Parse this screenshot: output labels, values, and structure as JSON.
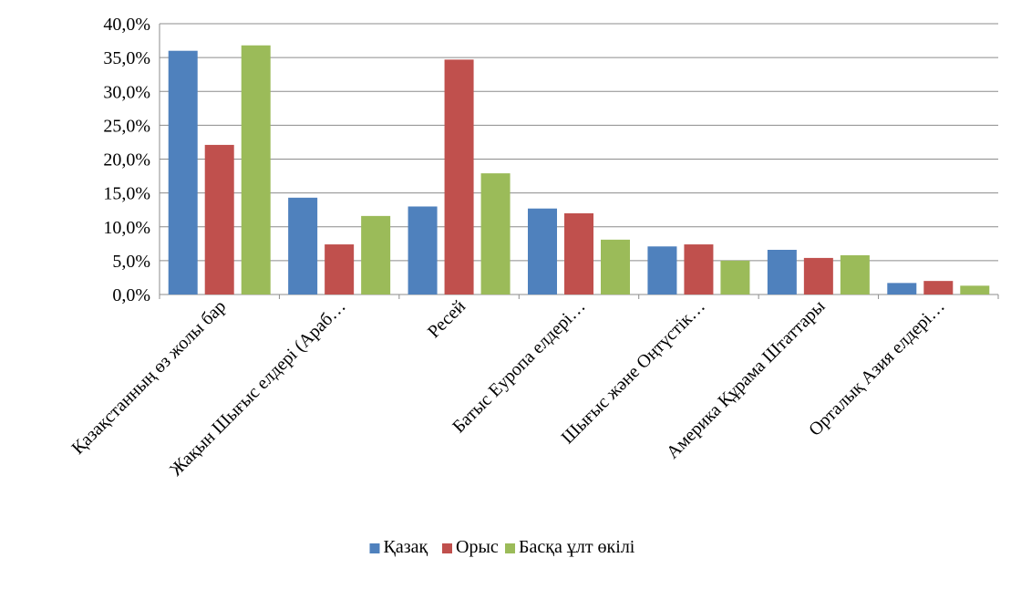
{
  "chart_data": {
    "type": "bar",
    "title": "",
    "xlabel": "",
    "ylabel": "",
    "ylim": [
      0,
      40
    ],
    "yticks": [
      "0,0%",
      "5,0%",
      "10,0%",
      "15,0%",
      "20,0%",
      "25,0%",
      "30,0%",
      "35,0%",
      "40,0%"
    ],
    "grid": true,
    "legend_position": "bottom",
    "categories": [
      "Қазақстанның өз жолы бар",
      "Жақын Шығыс елдері (Араб…",
      "Ресей",
      "Батыс Еуропа елдері…",
      "Шығыс және Оңтүстік…",
      "Америка Құрама Штаттары",
      "Орталық Азия елдері…"
    ],
    "series": [
      {
        "name": "Қазақ",
        "color": "#4f81bd",
        "values": [
          36.0,
          14.3,
          13.0,
          12.7,
          7.1,
          6.6,
          1.7
        ]
      },
      {
        "name": "Орыс",
        "color": "#c0504d",
        "values": [
          22.1,
          7.4,
          34.7,
          12.0,
          7.4,
          5.4,
          2.0
        ]
      },
      {
        "name": "Басқа ұлт өкілі",
        "color": "#9bbb59",
        "values": [
          36.8,
          11.6,
          17.9,
          8.1,
          5.0,
          5.8,
          1.3
        ]
      }
    ]
  }
}
